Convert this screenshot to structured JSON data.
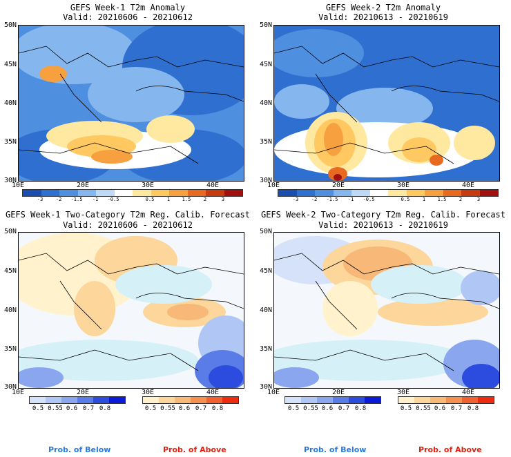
{
  "panels": [
    {
      "id": "p1",
      "title": "GEFS Week-1 T2m Anomaly",
      "subtitle": "Valid: 20210606 - 20210612",
      "kind": "anomaly"
    },
    {
      "id": "p2",
      "title": "GEFS Week-2 T2m Anomaly",
      "subtitle": "Valid: 20210613 - 20210619",
      "kind": "anomaly"
    },
    {
      "id": "p3",
      "title": "GEFS Week-1 Two-Category T2m Reg. Calib. Forecast",
      "subtitle": "Valid: 20210606 - 20210612",
      "kind": "probability"
    },
    {
      "id": "p4",
      "title": "GEFS Week-2 Two-Category T2m Reg. Calib. Forecast",
      "subtitle": "Valid: 20210613 - 20210619",
      "kind": "probability"
    }
  ],
  "axes": {
    "lat_labels": [
      "50N",
      "45N",
      "40N",
      "35N",
      "30N"
    ],
    "lon_labels": [
      "10E",
      "20E",
      "30E",
      "40E"
    ]
  },
  "anomaly_colorbar": {
    "ticks": [
      "-3",
      "-2",
      "-1.5",
      "-1",
      "-0.5",
      "0.5",
      "1",
      "1.5",
      "2",
      "3"
    ],
    "colors": [
      "#1a4fb0",
      "#2e6fd0",
      "#4f8fe0",
      "#86b6ee",
      "#bfdaf7",
      "#ffffff",
      "#ffe8a0",
      "#ffc860",
      "#f7a040",
      "#e86a20",
      "#c83a10",
      "#a01010"
    ]
  },
  "prob_below_colorbar": {
    "ticks": [
      "0.5",
      "0.55",
      "0.6",
      "0.7",
      "0.8"
    ],
    "colors": [
      "#d6e2fa",
      "#b0c6f4",
      "#8aa6ee",
      "#5a7ce6",
      "#2c4ce0",
      "#0a1ad8"
    ]
  },
  "prob_above_colorbar": {
    "ticks": [
      "0.5",
      "0.55",
      "0.6",
      "0.7",
      "0.8"
    ],
    "colors": [
      "#fff2cc",
      "#fcd69a",
      "#f8b878",
      "#f49050",
      "#f26030",
      "#ee2a10"
    ]
  },
  "legend": {
    "below_label": "Prob. of Below",
    "above_label": "Prob. of Above",
    "below_color": "#2a7ad8",
    "above_color": "#e02010"
  }
}
